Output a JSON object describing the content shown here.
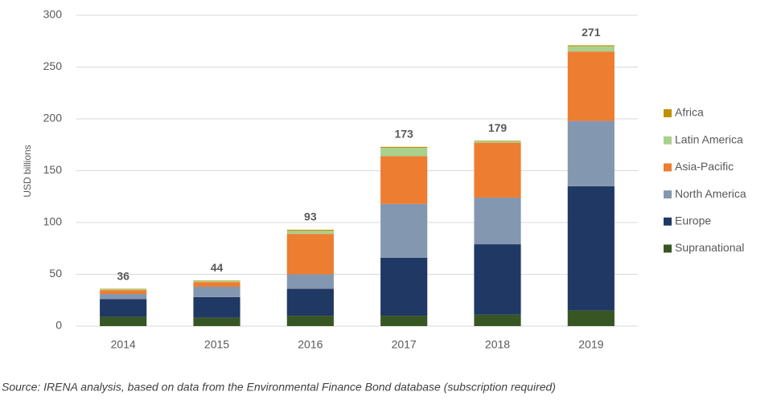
{
  "chart_data": {
    "type": "stacked_bar",
    "y_axis_label": "USD billions",
    "source": "Source: IRENA analysis, based on data from the Environmental Finance Bond database (subscription required)",
    "categories": [
      "2014",
      "2015",
      "2016",
      "2017",
      "2018",
      "2019"
    ],
    "series": [
      {
        "name": "Supranational",
        "color": "#375623",
        "values": [
          9,
          8,
          10,
          10,
          11,
          15
        ]
      },
      {
        "name": "Europe",
        "color": "#203864",
        "values": [
          17,
          20,
          26,
          56,
          68,
          120
        ]
      },
      {
        "name": "North America",
        "color": "#8497b0",
        "values": [
          5,
          10,
          14,
          52,
          45,
          63
        ]
      },
      {
        "name": "Asia-Pacific",
        "color": "#ed7d31",
        "values": [
          3.5,
          4.5,
          39,
          46,
          53,
          67
        ]
      },
      {
        "name": "Latin America",
        "color": "#a9d18e",
        "values": [
          1,
          1,
          3,
          8,
          1.5,
          5
        ]
      },
      {
        "name": "Africa",
        "color": "#bf9000",
        "values": [
          0.5,
          0.5,
          1,
          1,
          0.5,
          1
        ]
      }
    ],
    "totals": [
      36,
      44,
      93,
      173,
      179,
      271
    ],
    "ylim": [
      0,
      300
    ],
    "yticks": [
      0,
      50,
      100,
      150,
      200,
      250,
      300
    ],
    "grid": true,
    "legend": "right"
  }
}
